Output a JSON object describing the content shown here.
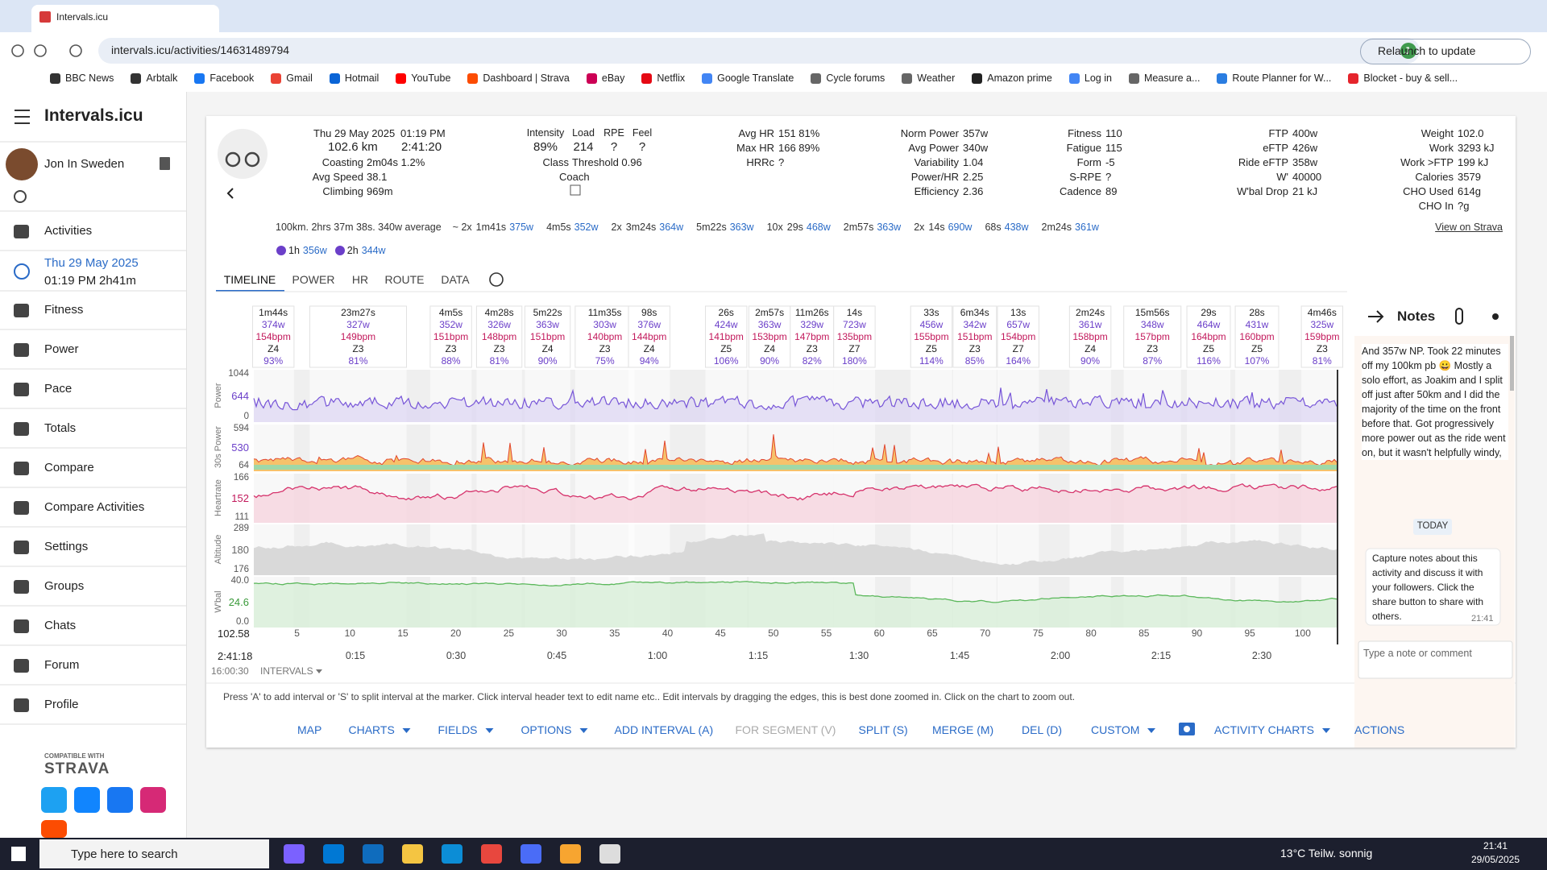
{
  "browser": {
    "tab_title": "Intervals.icu",
    "url": "intervals.icu/activities/14631489794",
    "relaunch": "Relaunch to update",
    "profile_initial": "J",
    "bookmarks": [
      "BBC News",
      "Arbtalk",
      "Facebook",
      "Gmail",
      "Hotmail",
      "YouTube",
      "Dashboard | Strava",
      "eBay",
      "Netflix",
      "Google Translate",
      "Cycle forums",
      "Weather",
      "Amazon prime",
      "Log in",
      "Measure a...",
      "Route Planner for W...",
      "Blocket - buy & sell..."
    ]
  },
  "sidebar": {
    "app_title": "Intervals.icu",
    "user": "Jon In Sweden",
    "nav_top": [
      "Activities"
    ],
    "current_activity": {
      "date": "Thu 29 May 2025",
      "time": "01:19 PM",
      "duration": "2h41m"
    },
    "nav": [
      "Fitness",
      "Power",
      "Pace",
      "Totals",
      "Compare",
      "Compare Activities",
      "Settings",
      "Groups",
      "Chats",
      "Forum",
      "Profile"
    ],
    "compatible": "COMPATIBLE WITH",
    "strava": "STRAVA"
  },
  "activity": {
    "date": "Thu 29 May 2025",
    "time": "01:19 PM",
    "distance": "102.6 km",
    "duration": "2:41:20",
    "basics": [
      {
        "label": "Coasting",
        "value": "2m04s 1.2%"
      },
      {
        "label": "Avg Speed",
        "value": "38.1"
      },
      {
        "label": "Climbing",
        "value": "969m"
      }
    ],
    "load": [
      {
        "label": "Intensity",
        "value": "89%"
      },
      {
        "label": "Load",
        "value": "214"
      },
      {
        "label": "RPE",
        "value": "?"
      },
      {
        "label": "Feel",
        "value": "?"
      }
    ],
    "class": {
      "label": "Class",
      "value": "Threshold 0.96"
    },
    "coach": "Coach",
    "columns": [
      [
        {
          "label": "Avg HR",
          "value": "151 81%"
        },
        {
          "label": "Max HR",
          "value": "166 89%"
        },
        {
          "label": "HRRc",
          "value": "?"
        }
      ],
      [
        {
          "label": "Norm Power",
          "value": "357w"
        },
        {
          "label": "Avg Power",
          "value": "340w"
        },
        {
          "label": "Variability",
          "value": "1.04"
        },
        {
          "label": "Power/HR",
          "value": "2.25"
        },
        {
          "label": "Efficiency",
          "value": "2.36"
        }
      ],
      [
        {
          "label": "Fitness",
          "value": "110"
        },
        {
          "label": "Fatigue",
          "value": "115"
        },
        {
          "label": "Form",
          "value": "-5"
        },
        {
          "label": "S-RPE",
          "value": "?"
        },
        {
          "label": "Cadence",
          "value": "89"
        }
      ],
      [
        {
          "label": "FTP",
          "value": "400w"
        },
        {
          "label": "eFTP",
          "value": "426w"
        },
        {
          "label": "Ride eFTP",
          "value": "358w"
        },
        {
          "label": "W'",
          "value": "40000"
        },
        {
          "label": "W'bal Drop",
          "value": "21 kJ"
        }
      ],
      [
        {
          "label": "Weight",
          "value": "102.0"
        },
        {
          "label": "Work",
          "value": "3293 kJ"
        },
        {
          "label": "Work >FTP",
          "value": "199 kJ"
        },
        {
          "label": "Calories",
          "value": "3579"
        },
        {
          "label": "CHO Used",
          "value": "614g"
        },
        {
          "label": "CHO In",
          "value": "?g"
        }
      ]
    ],
    "summary": "100km. 2hrs 37m 38s. 340w average",
    "efforts": [
      {
        "count": "~ 2x",
        "duration": "1m41s",
        "power": "375w"
      },
      {
        "duration": "4m5s",
        "power": "352w"
      },
      {
        "count": "2x",
        "duration": "3m24s",
        "power": "364w"
      },
      {
        "duration": "5m22s",
        "power": "363w"
      },
      {
        "count": "10x",
        "duration": "29s",
        "power": "468w"
      },
      {
        "duration": "2m57s",
        "power": "363w"
      },
      {
        "count": "2x",
        "duration": "14s",
        "power": "690w"
      },
      {
        "duration": "68s",
        "power": "438w"
      },
      {
        "duration": "2m24s",
        "power": "361w"
      }
    ],
    "peaks": [
      {
        "duration": "1h",
        "power": "356w"
      },
      {
        "duration": "2h",
        "power": "344w"
      }
    ],
    "strava_link": "View on Strava"
  },
  "tabs": [
    "TIMELINE",
    "POWER",
    "HR",
    "ROUTE",
    "DATA"
  ],
  "intervals": [
    {
      "duration": "1m44s",
      "power": "374w",
      "hr": "154bpm",
      "zone": "Z4",
      "pct": "93%"
    },
    {
      "duration": "23m27s",
      "power": "327w",
      "hr": "149bpm",
      "zone": "Z3",
      "pct": "81%"
    },
    {
      "duration": "4m5s",
      "power": "352w",
      "hr": "151bpm",
      "zone": "Z3",
      "pct": "88%"
    },
    {
      "duration": "4m28s",
      "power": "326w",
      "hr": "148bpm",
      "zone": "Z3",
      "pct": "81%"
    },
    {
      "duration": "5m22s",
      "power": "363w",
      "hr": "151bpm",
      "zone": "Z4",
      "pct": "90%"
    },
    {
      "duration": "11m35s",
      "power": "303w",
      "hr": "140bpm",
      "zone": "Z3",
      "pct": "75%"
    },
    {
      "duration": "98s",
      "power": "376w",
      "hr": "144bpm",
      "zone": "Z4",
      "pct": "94%"
    },
    {
      "duration": "26s",
      "power": "424w",
      "hr": "141bpm",
      "zone": "Z5",
      "pct": "106%"
    },
    {
      "duration": "2m57s",
      "power": "363w",
      "hr": "153bpm",
      "zone": "Z4",
      "pct": "90%"
    },
    {
      "duration": "11m26s",
      "power": "329w",
      "hr": "147bpm",
      "zone": "Z3",
      "pct": "82%"
    },
    {
      "duration": "14s",
      "power": "723w",
      "hr": "135bpm",
      "zone": "Z7",
      "pct": "180%"
    },
    {
      "duration": "33s",
      "power": "456w",
      "hr": "155bpm",
      "zone": "Z5",
      "pct": "114%"
    },
    {
      "duration": "6m34s",
      "power": "342w",
      "hr": "151bpm",
      "zone": "Z3",
      "pct": "85%"
    },
    {
      "duration": "13s",
      "power": "657w",
      "hr": "154bpm",
      "zone": "Z7",
      "pct": "164%"
    },
    {
      "duration": "2m24s",
      "power": "361w",
      "hr": "158bpm",
      "zone": "Z4",
      "pct": "90%"
    },
    {
      "duration": "15m56s",
      "power": "348w",
      "hr": "157bpm",
      "zone": "Z3",
      "pct": "87%"
    },
    {
      "duration": "29s",
      "power": "464w",
      "hr": "164bpm",
      "zone": "Z5",
      "pct": "116%"
    },
    {
      "duration": "28s",
      "power": "431w",
      "hr": "160bpm",
      "zone": "Z5",
      "pct": "107%"
    },
    {
      "duration": "4m46s",
      "power": "325w",
      "hr": "159bpm",
      "zone": "Z3",
      "pct": "81%"
    }
  ],
  "chart": {
    "panels": [
      {
        "label": "Power",
        "top": "1044",
        "mid": "644",
        "bottom": "0"
      },
      {
        "label": "30s Power",
        "top": "594",
        "mid": "530",
        "bottom": "64"
      },
      {
        "label": "Heartrate",
        "top": "166",
        "mid": "152",
        "bottom": "111"
      },
      {
        "label": "Altitude",
        "top": "289",
        "mid": "180",
        "bottom": "176"
      },
      {
        "label": "W'bal",
        "top": "40.0",
        "mid": "24.6",
        "bottom": "0.0"
      }
    ],
    "distance_start": "102.58",
    "distance_ticks": [
      "5",
      "10",
      "15",
      "20",
      "25",
      "30",
      "35",
      "40",
      "45",
      "50",
      "55",
      "60",
      "65",
      "70",
      "75",
      "80",
      "85",
      "90",
      "95",
      "100"
    ],
    "time_start": "2:41:18",
    "time_ticks": [
      "0:15",
      "0:30",
      "0:45",
      "1:00",
      "1:15",
      "1:30",
      "1:45",
      "2:00",
      "2:15",
      "2:30"
    ],
    "clock": "16:00:30",
    "intervals_menu": "INTERVALS"
  },
  "help": "Press 'A' to add interval or 'S' to split interval at the marker. Click interval header text to edit name etc.. Edit intervals by dragging the edges, this is best done zoomed in. Click on the chart to zoom out.",
  "toolbar": [
    {
      "label": "MAP"
    },
    {
      "label": "CHARTS",
      "menu": true
    },
    {
      "label": "FIELDS",
      "menu": true
    },
    {
      "label": "OPTIONS",
      "menu": true
    },
    {
      "label": "ADD INTERVAL (A)"
    },
    {
      "label": "FOR SEGMENT (V)",
      "disabled": true
    },
    {
      "label": "SPLIT (S)"
    },
    {
      "label": "MERGE (M)"
    },
    {
      "label": "DEL (D)"
    },
    {
      "label": "CUSTOM",
      "menu": true
    },
    {
      "label": "ACTIVITY CHARTS",
      "menu": true
    },
    {
      "label": "ACTIONS",
      "menu": true
    }
  ],
  "notes": {
    "title": "Notes",
    "text": "And 357w NP. Took 22 minutes off my 100km pb 😀 Mostly a solo effort, as Joakim and I split off just after 50km and I did the majority of the time on the front before that. Got progressively more power out as the ride went on, but it wasn't helpfully windy,",
    "day": "TODAY",
    "message": "Capture notes about this activity and discuss it with your followers. Click the share button to share with others.",
    "message_time": "21:41",
    "placeholder": "Type a note or comment"
  },
  "taskbar": {
    "search": "Type here to search",
    "weather": "13°C Teilw. sonnig",
    "time": "21:41",
    "date": "29/05/2025"
  }
}
